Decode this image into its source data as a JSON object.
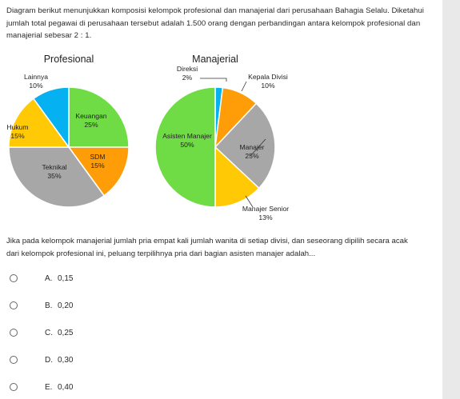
{
  "intro": {
    "line1": "Diagram berikut menunjukkan komposisi kelompok profesional dan manajerial dari perusahaan Bahagia Selalu. Diketahui",
    "line2": "jumlah total pegawai di perusahaan tersebut adalah 1.500 orang dengan perbandingan antara kelompok profesional dan",
    "line3": "manajerial sebesar 2 : 1."
  },
  "chart_data": [
    {
      "type": "pie",
      "title": "Profesional",
      "slices": [
        {
          "label": "Keuangan",
          "value": 25,
          "display": "25%",
          "color": "#6fdc45"
        },
        {
          "label": "SDM",
          "value": 15,
          "display": "15%",
          "color": "#ff9d09"
        },
        {
          "label": "Teknikal",
          "value": 35,
          "display": "35%",
          "color": "#a7a7a7"
        },
        {
          "label": "Hukum",
          "value": 15,
          "display": "15%",
          "color": "#ffc906"
        },
        {
          "label": "Lainnya",
          "value": 10,
          "display": "10%",
          "color": "#05b1f0"
        }
      ]
    },
    {
      "type": "pie",
      "title": "Manajerial",
      "slices": [
        {
          "label": "Direksi",
          "value": 2,
          "display": "2%",
          "color": "#05b1f0"
        },
        {
          "label": "Kepala Divisi",
          "value": 10,
          "display": "10%",
          "color": "#ff9d09"
        },
        {
          "label": "Manajer",
          "value": 25,
          "display": "25%",
          "color": "#a7a7a7"
        },
        {
          "label": "Manajer Senior",
          "value": 13,
          "display": "13%",
          "color": "#ffc906"
        },
        {
          "label": "Asisten Manajer",
          "value": 50,
          "display": "50%",
          "color": "#6fdc45"
        }
      ]
    }
  ],
  "question": {
    "line1": "Jika pada kelompok manajerial jumlah pria empat kali jumlah wanita di setiap divisi, dan seseorang dipilih secara acak",
    "line2": "dari kelompok profesional ini, peluang terpilihnya pria dari bagian asisten manajer adalah..."
  },
  "options": [
    {
      "letter": "A.",
      "value": "0,15"
    },
    {
      "letter": "B.",
      "value": "0,20"
    },
    {
      "letter": "C.",
      "value": "0,25"
    },
    {
      "letter": "D.",
      "value": "0,30"
    },
    {
      "letter": "E.",
      "value": "0,40"
    }
  ]
}
